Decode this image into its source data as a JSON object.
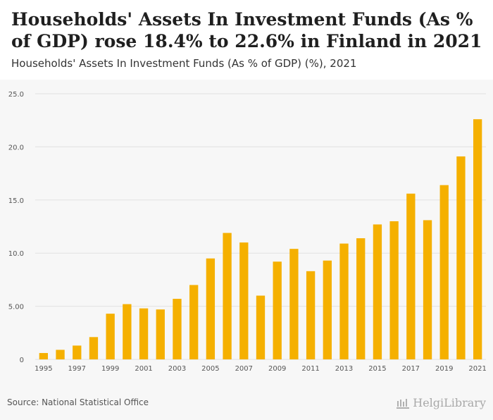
{
  "header": {
    "title": "Households' Assets In Investment Funds (As % of GDP) rose 18.4% to 22.6% in Finland in 2021",
    "subtitle": "Households' Assets In Investment Funds (As % of GDP) (%), 2021"
  },
  "footer": {
    "source": "Source: National Statistical Office",
    "brand": "HelgiLibrary"
  },
  "colors": {
    "bar": "#F5B000",
    "grid": "#e2e2e2",
    "axis_text": "#555555",
    "panel": "#f7f7f7"
  },
  "chart_data": {
    "type": "bar",
    "title": "Households' Assets In Investment Funds (As % of GDP) (%), 2021",
    "xlabel": "",
    "ylabel": "",
    "ylim": [
      0,
      25
    ],
    "yticks": [
      "0",
      "5.00",
      "10.0",
      "15.0",
      "20.0",
      "25.0"
    ],
    "grid": true,
    "categories": [
      "1995",
      "1996",
      "1997",
      "1998",
      "1999",
      "2000",
      "2001",
      "2002",
      "2003",
      "2004",
      "2005",
      "2006",
      "2007",
      "2008",
      "2009",
      "2010",
      "2011",
      "2012",
      "2013",
      "2014",
      "2015",
      "2016",
      "2017",
      "2018",
      "2019",
      "2020",
      "2021"
    ],
    "x_tick_labels": [
      "1995",
      "1997",
      "1999",
      "2001",
      "2003",
      "2005",
      "2007",
      "2009",
      "2011",
      "2013",
      "2015",
      "2017",
      "2019",
      "2021"
    ],
    "values": [
      0.6,
      0.9,
      1.3,
      2.1,
      4.3,
      5.2,
      4.8,
      4.7,
      5.7,
      7.0,
      9.5,
      11.9,
      11.0,
      6.0,
      9.2,
      10.4,
      8.3,
      9.3,
      10.9,
      11.4,
      12.7,
      13.0,
      15.6,
      13.1,
      16.4,
      19.1,
      22.6
    ]
  }
}
